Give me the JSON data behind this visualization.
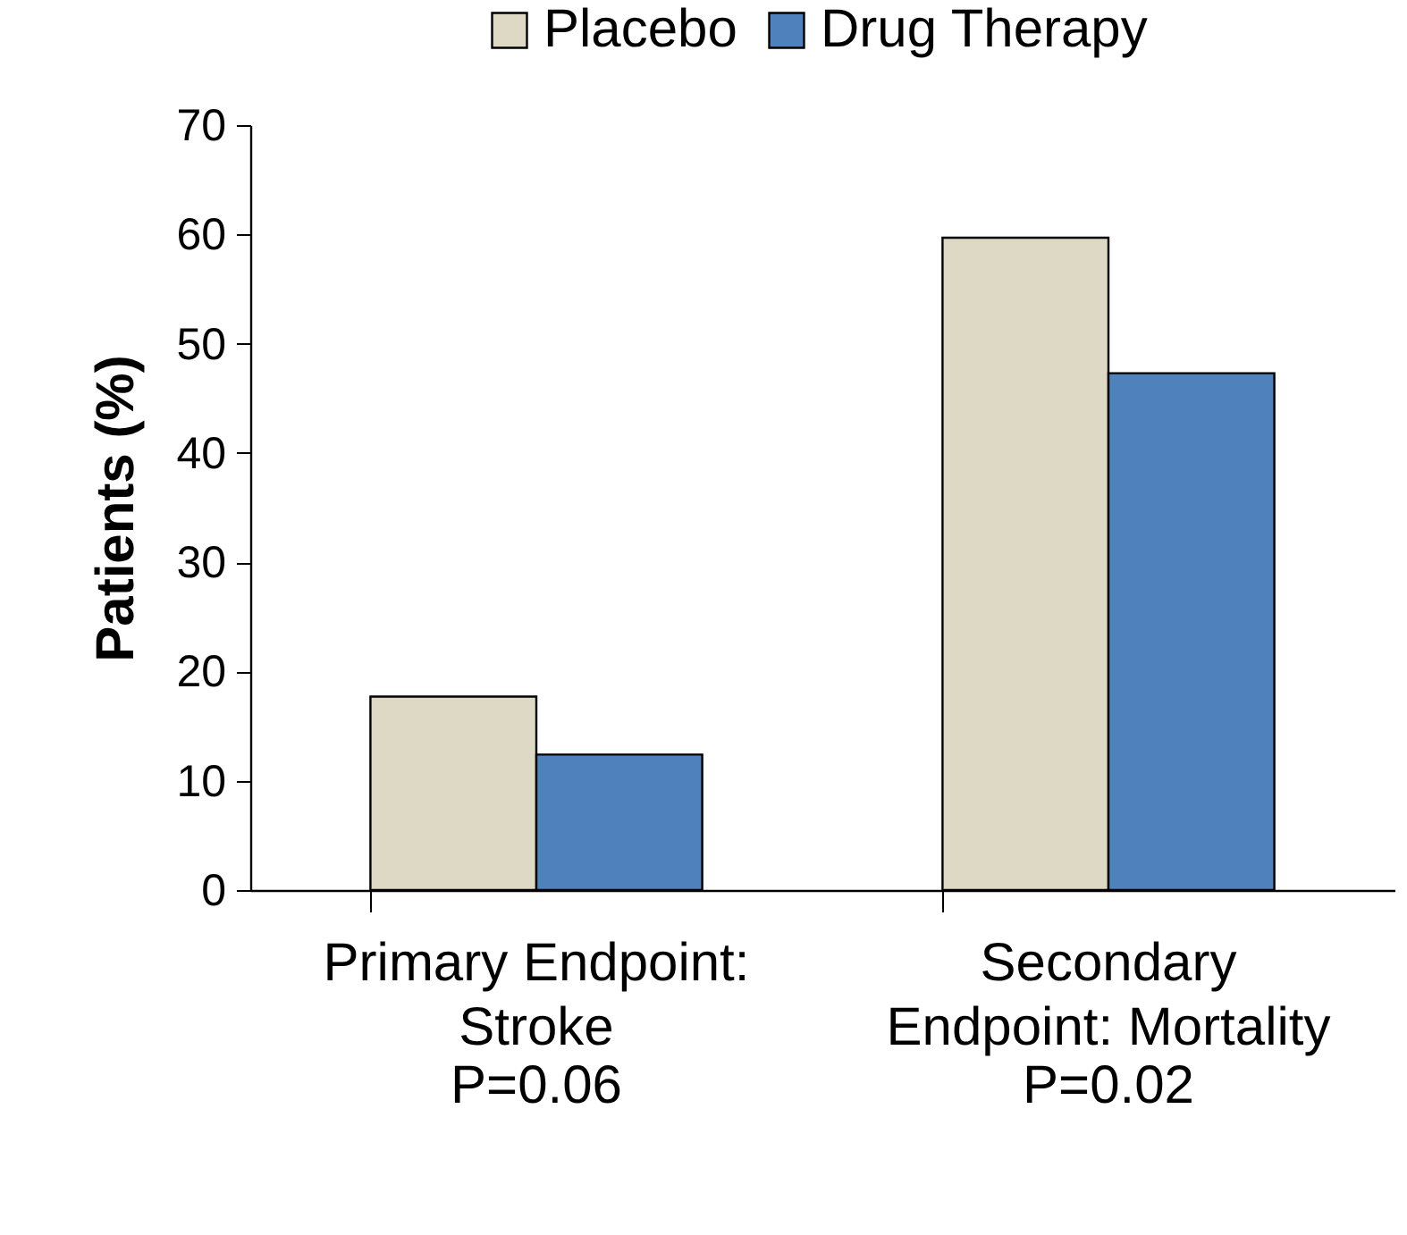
{
  "chart_data": {
    "type": "bar",
    "ylabel": "Patients (%)",
    "categories": [
      "Primary Endpoint:\nStroke",
      "Secondary\nEndpoint: Mortality"
    ],
    "series": [
      {
        "name": "Placebo",
        "color": "#ddd9c4",
        "values": [
          17.7,
          59.7
        ]
      },
      {
        "name": "Drug Therapy",
        "color": "#4f81bd",
        "values": [
          12.4,
          47.3
        ]
      }
    ],
    "ylim": [
      0,
      70
    ],
    "yticks": [
      0,
      10,
      20,
      30,
      40,
      50,
      60,
      70
    ],
    "grid": false,
    "legend": "top right",
    "annotations": [
      "P=0.06",
      "P=0.02"
    ]
  }
}
